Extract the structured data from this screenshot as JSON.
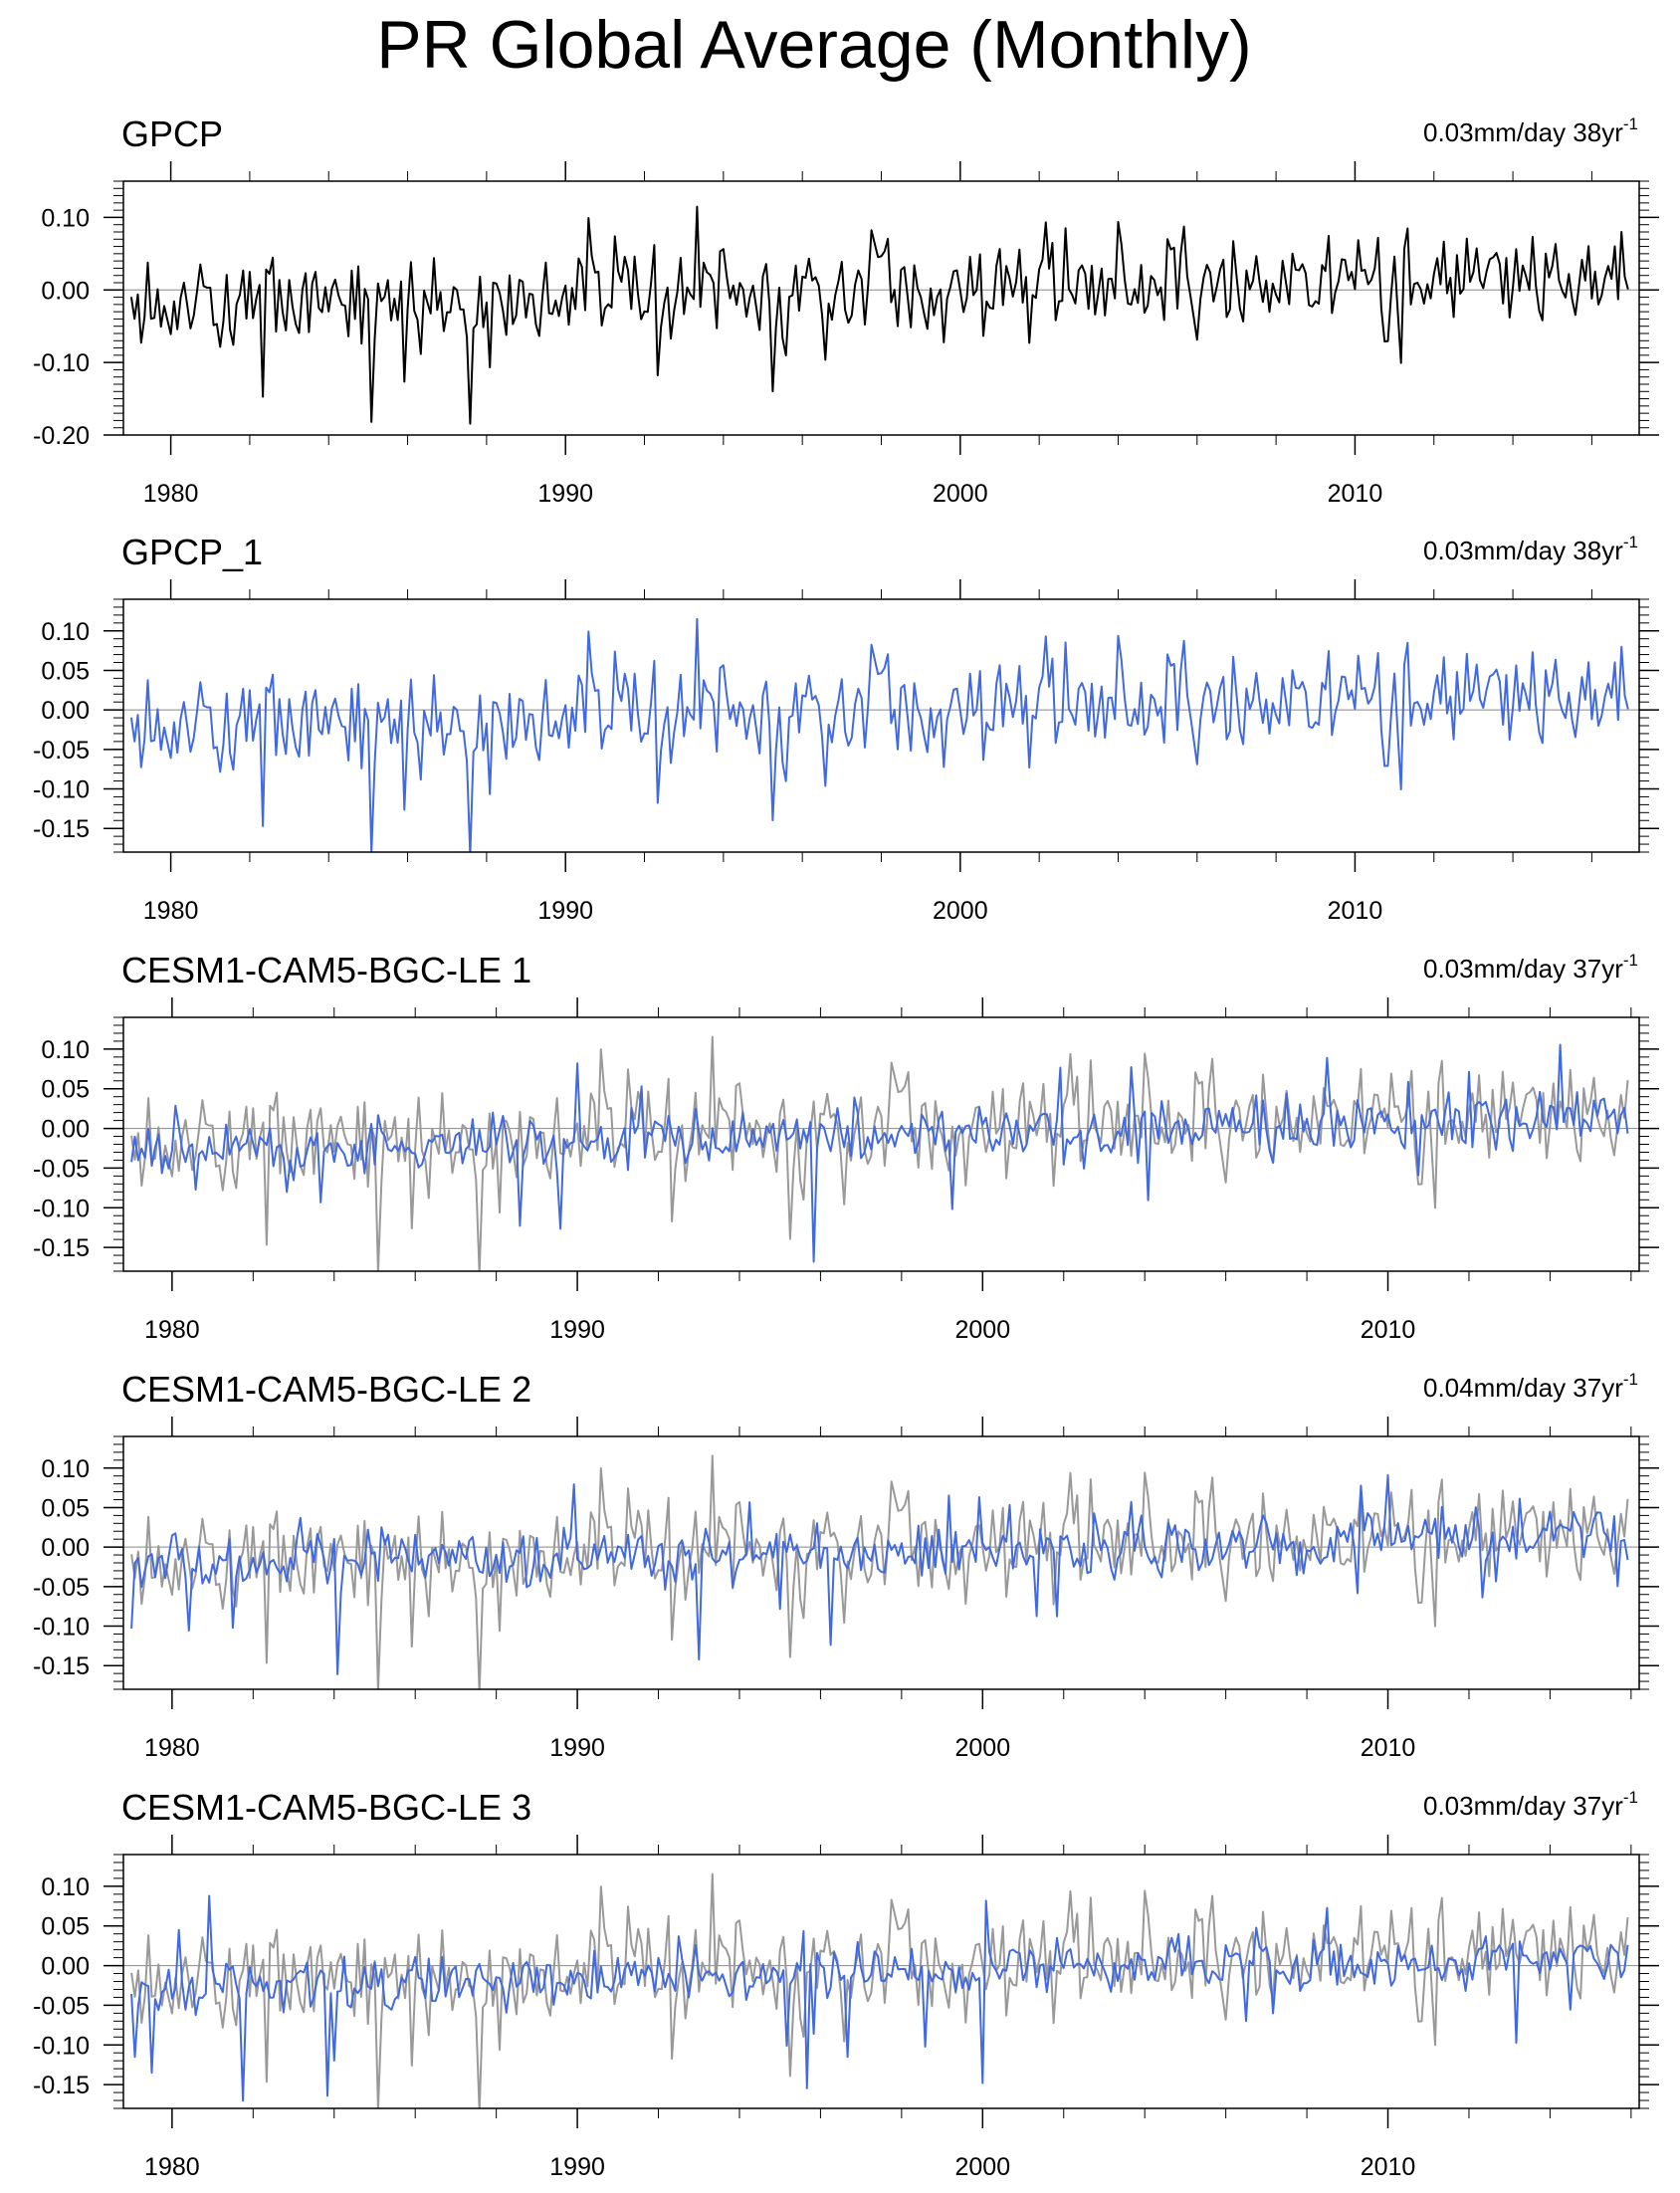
{
  "figure_title": "PR Global Average (Monthly)",
  "chart_data": [
    {
      "type": "line",
      "title": "GPCP",
      "trend_value": "0.03mm/day 38yr",
      "trend_exponent": "-1",
      "xlim": [
        1978.8,
        2017.2
      ],
      "ylim": [
        -0.2,
        0.15
      ],
      "yticks": [
        -0.2,
        -0.1,
        0.0,
        0.1
      ],
      "ytick_labels": [
        "-0.20",
        "-0.10",
        "0.00",
        "0.10"
      ],
      "xticks": [
        1980,
        1990,
        2000,
        2010
      ],
      "xtick_labels": [
        "1980",
        "1990",
        "2000",
        "2010"
      ],
      "zero_line": true,
      "series": [
        {
          "name": "GPCP",
          "color": "#000000",
          "generator": {
            "start": 1979.0,
            "months": 456,
            "seed": 11,
            "amp": 0.045,
            "trend": 0.001,
            "mean": 0.0
          }
        }
      ]
    },
    {
      "type": "line",
      "title": "GPCP_1",
      "trend_value": "0.03mm/day 38yr",
      "trend_exponent": "-1",
      "xlim": [
        1978.8,
        2017.2
      ],
      "ylim": [
        -0.18,
        0.14
      ],
      "yticks": [
        -0.15,
        -0.1,
        -0.05,
        0.0,
        0.05,
        0.1
      ],
      "ytick_labels": [
        "-0.15",
        "-0.10",
        "-0.05",
        "0.00",
        "0.05",
        "0.10"
      ],
      "xticks": [
        1980,
        1990,
        2000,
        2010
      ],
      "xtick_labels": [
        "1980",
        "1990",
        "2000",
        "2010"
      ],
      "zero_line": true,
      "series": [
        {
          "name": "GPCP_1",
          "color": "#4169e1",
          "generator": {
            "start": 1979.0,
            "months": 456,
            "seed": 11,
            "amp": 0.045,
            "trend": 0.001,
            "mean": 0.0
          }
        }
      ]
    },
    {
      "type": "line",
      "title": "CESM1-CAM5-BGC-LE 1",
      "trend_value": "0.03mm/day 37yr",
      "trend_exponent": "-1",
      "xlim": [
        1978.8,
        2016.2
      ],
      "ylim": [
        -0.18,
        0.14
      ],
      "yticks": [
        -0.15,
        -0.1,
        -0.05,
        0.0,
        0.05,
        0.1
      ],
      "ytick_labels": [
        "-0.15",
        "-0.10",
        "-0.05",
        "0.00",
        "0.05",
        "0.10"
      ],
      "xticks": [
        1980,
        1990,
        2000,
        2010
      ],
      "xtick_labels": [
        "1980",
        "1990",
        "2000",
        "2010"
      ],
      "zero_line": true,
      "series": [
        {
          "name": "GPCP",
          "color": "#999999",
          "generator": {
            "start": 1979.0,
            "months": 444,
            "seed": 11,
            "amp": 0.045,
            "trend": 0.001,
            "mean": 0.0
          }
        },
        {
          "name": "CESM1-CAM5-BGC-LE 1",
          "color": "#4169e1",
          "generator": {
            "start": 1979.0,
            "months": 444,
            "seed": 21,
            "amp": 0.025,
            "trend": 0.0011,
            "mean": -0.01
          }
        }
      ]
    },
    {
      "type": "line",
      "title": "CESM1-CAM5-BGC-LE 2",
      "trend_value": "0.04mm/day 37yr",
      "trend_exponent": "-1",
      "xlim": [
        1978.8,
        2016.2
      ],
      "ylim": [
        -0.18,
        0.14
      ],
      "yticks": [
        -0.15,
        -0.1,
        -0.05,
        0.0,
        0.05,
        0.1
      ],
      "ytick_labels": [
        "-0.15",
        "-0.10",
        "-0.05",
        "0.00",
        "0.05",
        "0.10"
      ],
      "xticks": [
        1980,
        1990,
        2000,
        2010
      ],
      "xtick_labels": [
        "1980",
        "1990",
        "2000",
        "2010"
      ],
      "zero_line": true,
      "series": [
        {
          "name": "GPCP",
          "color": "#999999",
          "generator": {
            "start": 1979.0,
            "months": 444,
            "seed": 11,
            "amp": 0.045,
            "trend": 0.001,
            "mean": 0.0
          }
        },
        {
          "name": "CESM1-CAM5-BGC-LE 2",
          "color": "#4169e1",
          "generator": {
            "start": 1979.0,
            "months": 444,
            "seed": 33,
            "amp": 0.025,
            "trend": 0.0012,
            "mean": -0.005
          }
        }
      ]
    },
    {
      "type": "line",
      "title": "CESM1-CAM5-BGC-LE 3",
      "trend_value": "0.03mm/day 37yr",
      "trend_exponent": "-1",
      "xlim": [
        1978.8,
        2016.2
      ],
      "ylim": [
        -0.18,
        0.14
      ],
      "yticks": [
        -0.15,
        -0.1,
        -0.05,
        0.0,
        0.05,
        0.1
      ],
      "ytick_labels": [
        "-0.15",
        "-0.10",
        "-0.05",
        "0.00",
        "0.05",
        "0.10"
      ],
      "xticks": [
        1980,
        1990,
        2000,
        2010
      ],
      "xtick_labels": [
        "1980",
        "1990",
        "2000",
        "2010"
      ],
      "zero_line": true,
      "series": [
        {
          "name": "GPCP",
          "color": "#999999",
          "generator": {
            "start": 1979.0,
            "months": 444,
            "seed": 11,
            "amp": 0.045,
            "trend": 0.001,
            "mean": 0.0
          }
        },
        {
          "name": "CESM1-CAM5-BGC-LE 3",
          "color": "#4169e1",
          "generator": {
            "start": 1979.0,
            "months": 444,
            "seed": 47,
            "amp": 0.022,
            "trend": 0.001,
            "mean": -0.008
          }
        }
      ]
    }
  ]
}
